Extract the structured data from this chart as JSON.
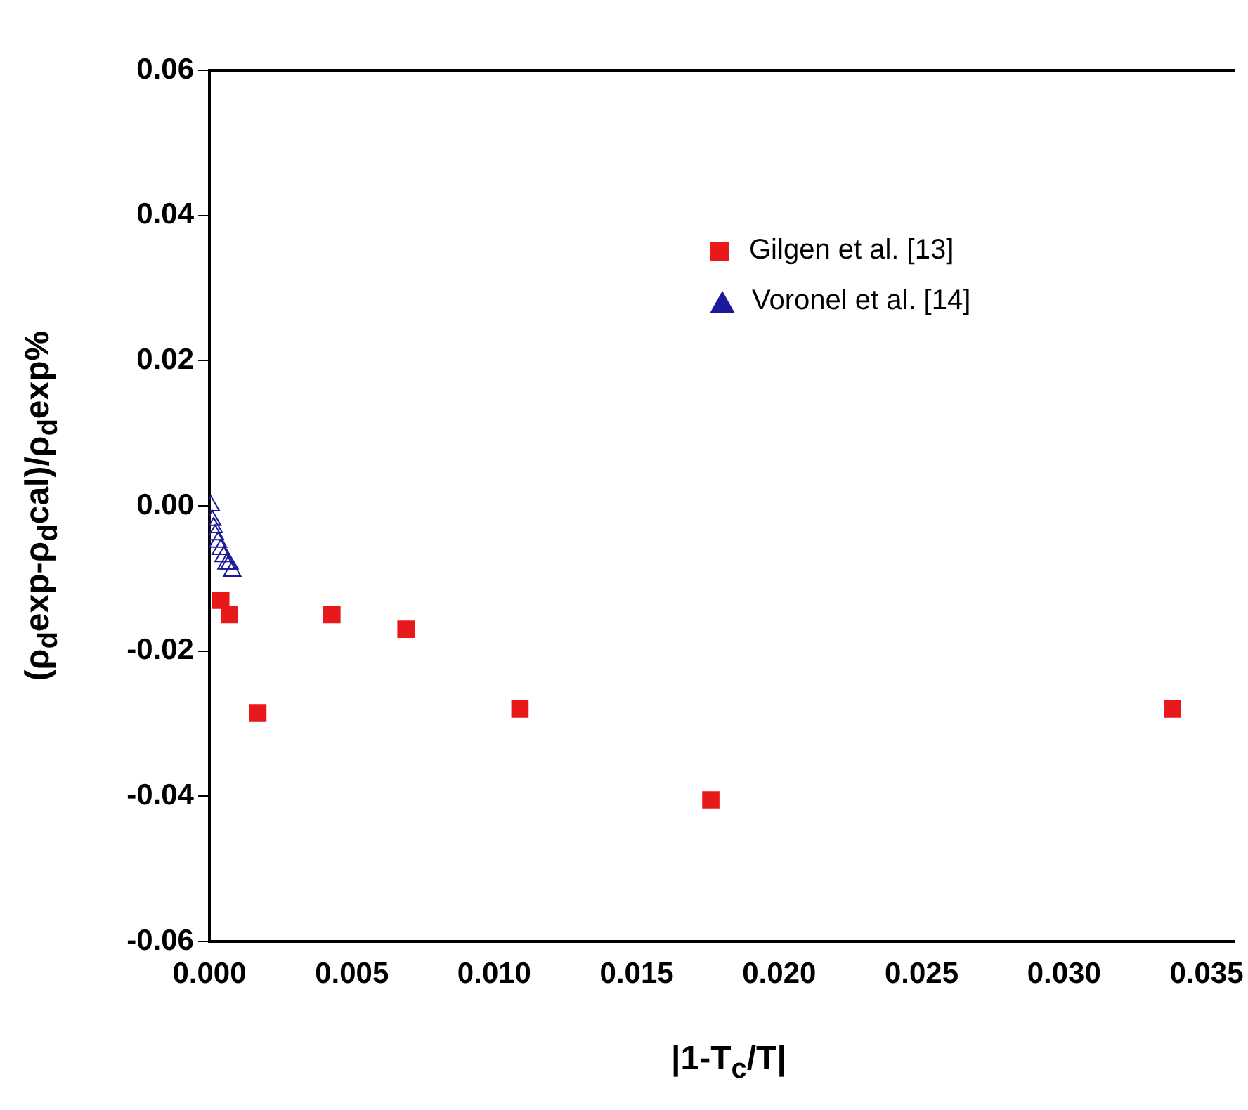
{
  "chart_data": {
    "type": "scatter",
    "xlabel": "|1-T$_{c}$/T|",
    "ylabel": "(ρ$_{d}$exp-ρ$_{d}$cal)/ρ$_{d}$exp%",
    "xlim": [
      0,
      0.036
    ],
    "xticks": [
      {
        "value": 0,
        "label": "0.000"
      },
      0.005,
      {
        "value": 0.01,
        "label": "0.010"
      },
      0.015,
      {
        "value": 0.02,
        "label": "0.020"
      },
      0.025,
      {
        "value": 0.03,
        "label": "0.030"
      },
      0.035
    ],
    "ylim": [
      -0.06,
      0.06
    ],
    "yticks": [
      -0.06,
      -0.04,
      -0.02,
      {
        "value": 0,
        "label": "0.00"
      },
      0.02,
      0.04,
      0.06
    ],
    "grid": false,
    "legend": "top right",
    "series": [
      {
        "name": "Gilgen et al. [13]",
        "color": "#e8191b",
        "marker": "square",
        "x": [
          0.0004,
          0.0007,
          0.0017,
          0.0043,
          0.0069,
          0.0109,
          0.0176,
          0.0338
        ],
        "values": [
          -0.013,
          -0.015,
          -0.0285,
          -0.015,
          -0.017,
          -0.028,
          -0.0405,
          -0.028
        ]
      },
      {
        "name": "Voronel et al. [14]",
        "color": "#1a1a9a",
        "marker": "triangle",
        "x": [
          5e-05,
          0.0001,
          0.00015,
          0.0002,
          0.0003,
          0.0004,
          0.0005,
          0.0006,
          0.0007,
          0.0008
        ],
        "values": [
          0,
          -0.002,
          -0.003,
          -0.004,
          -0.005,
          -0.006,
          -0.007,
          -0.008,
          -0.008,
          -0.009
        ]
      }
    ]
  }
}
